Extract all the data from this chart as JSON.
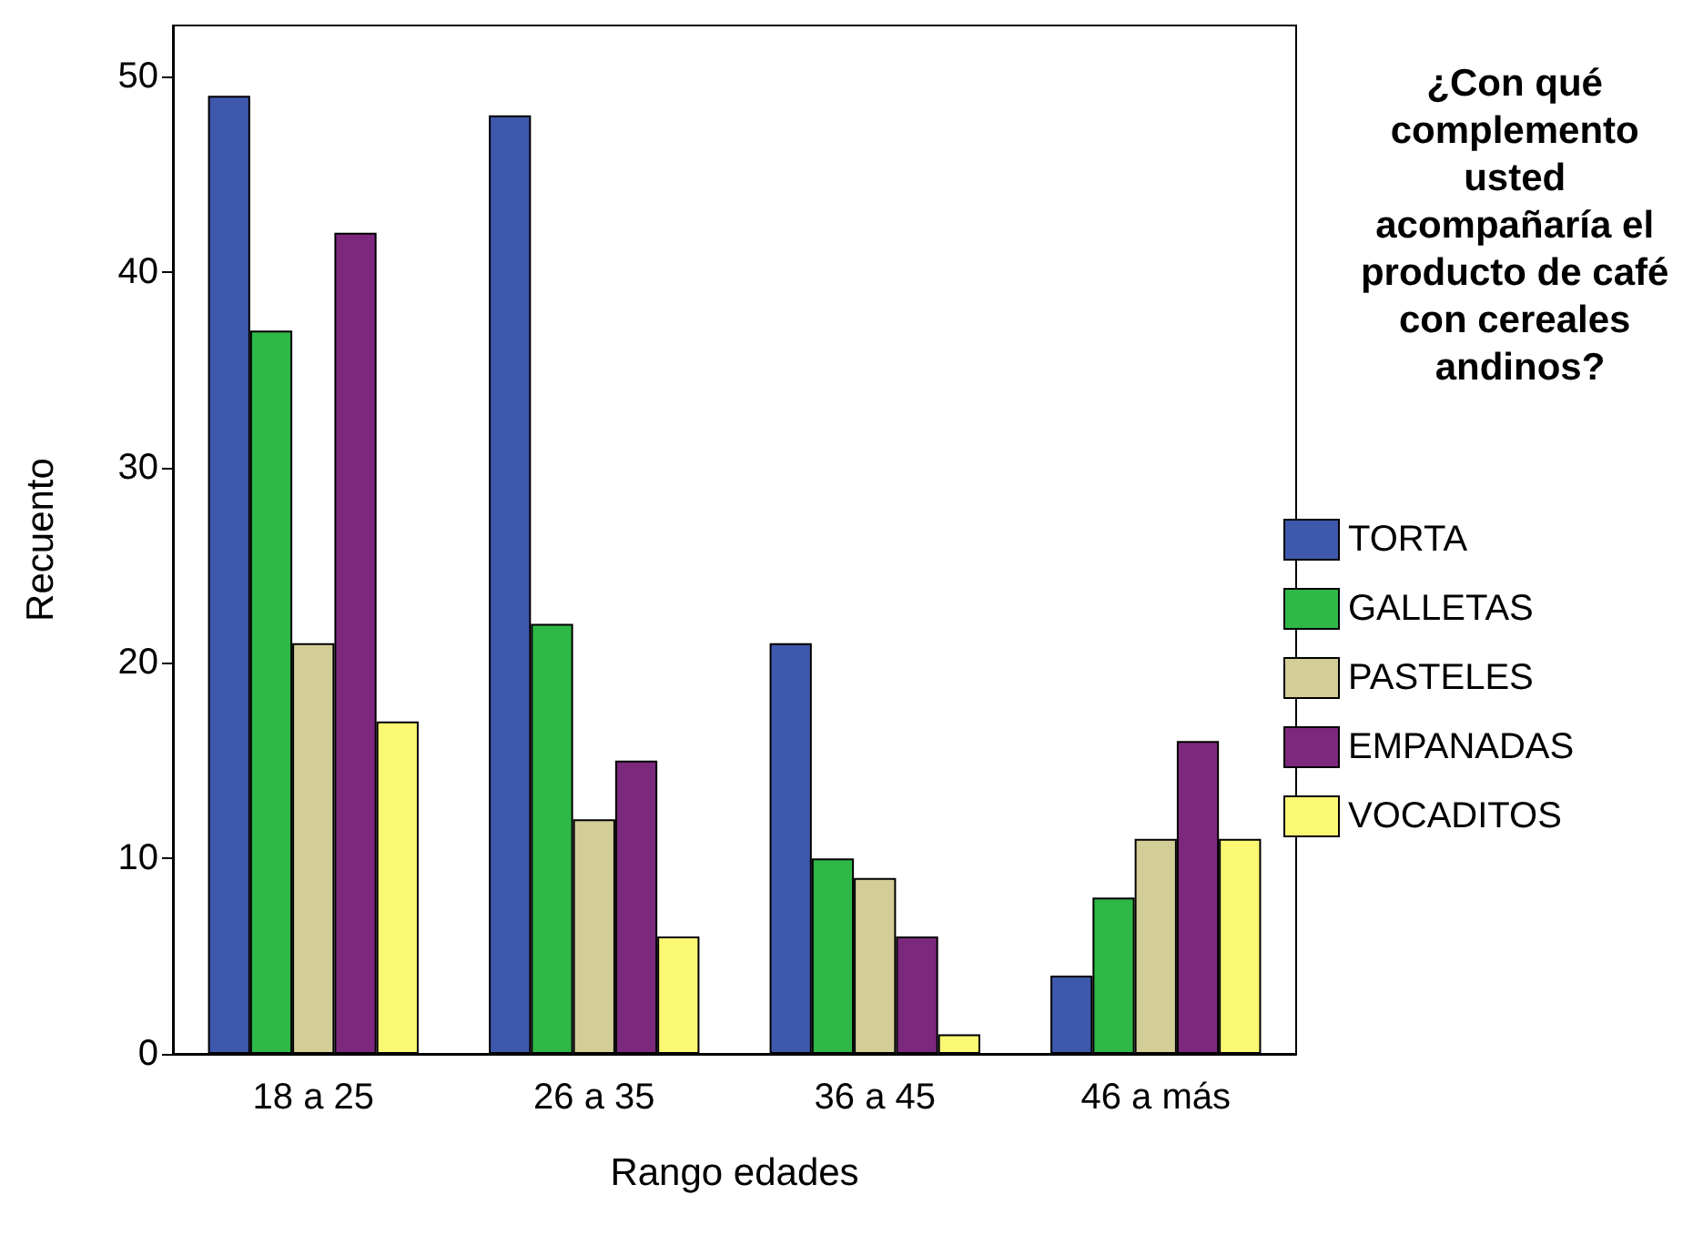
{
  "chart_data": {
    "type": "bar",
    "xlabel": "Rango edades",
    "ylabel": "Recuento",
    "legend_title": "¿Con qué complemento usted acompañaría el producto de café con cereales andinos?",
    "categories": [
      "18 a 25",
      "26 a 35",
      "36 a 45",
      "46 a más"
    ],
    "series": [
      {
        "name": "TORTA",
        "color": "#3e58ac",
        "values": [
          49,
          48,
          21,
          4
        ]
      },
      {
        "name": "GALLETAS",
        "color": "#2eb848",
        "values": [
          37,
          22,
          10,
          8
        ]
      },
      {
        "name": "PASTELES",
        "color": "#d3ce97",
        "values": [
          21,
          12,
          9,
          11
        ]
      },
      {
        "name": "EMPANADAS",
        "color": "#7c287d",
        "values": [
          42,
          15,
          6,
          16
        ]
      },
      {
        "name": "VOCADITOS",
        "color": "#fbf873",
        "values": [
          17,
          6,
          1,
          11
        ]
      }
    ],
    "ylim": [
      0,
      52.6
    ],
    "yticks": [
      0,
      10,
      20,
      30,
      40,
      50
    ],
    "grid": false,
    "legend": "right"
  }
}
